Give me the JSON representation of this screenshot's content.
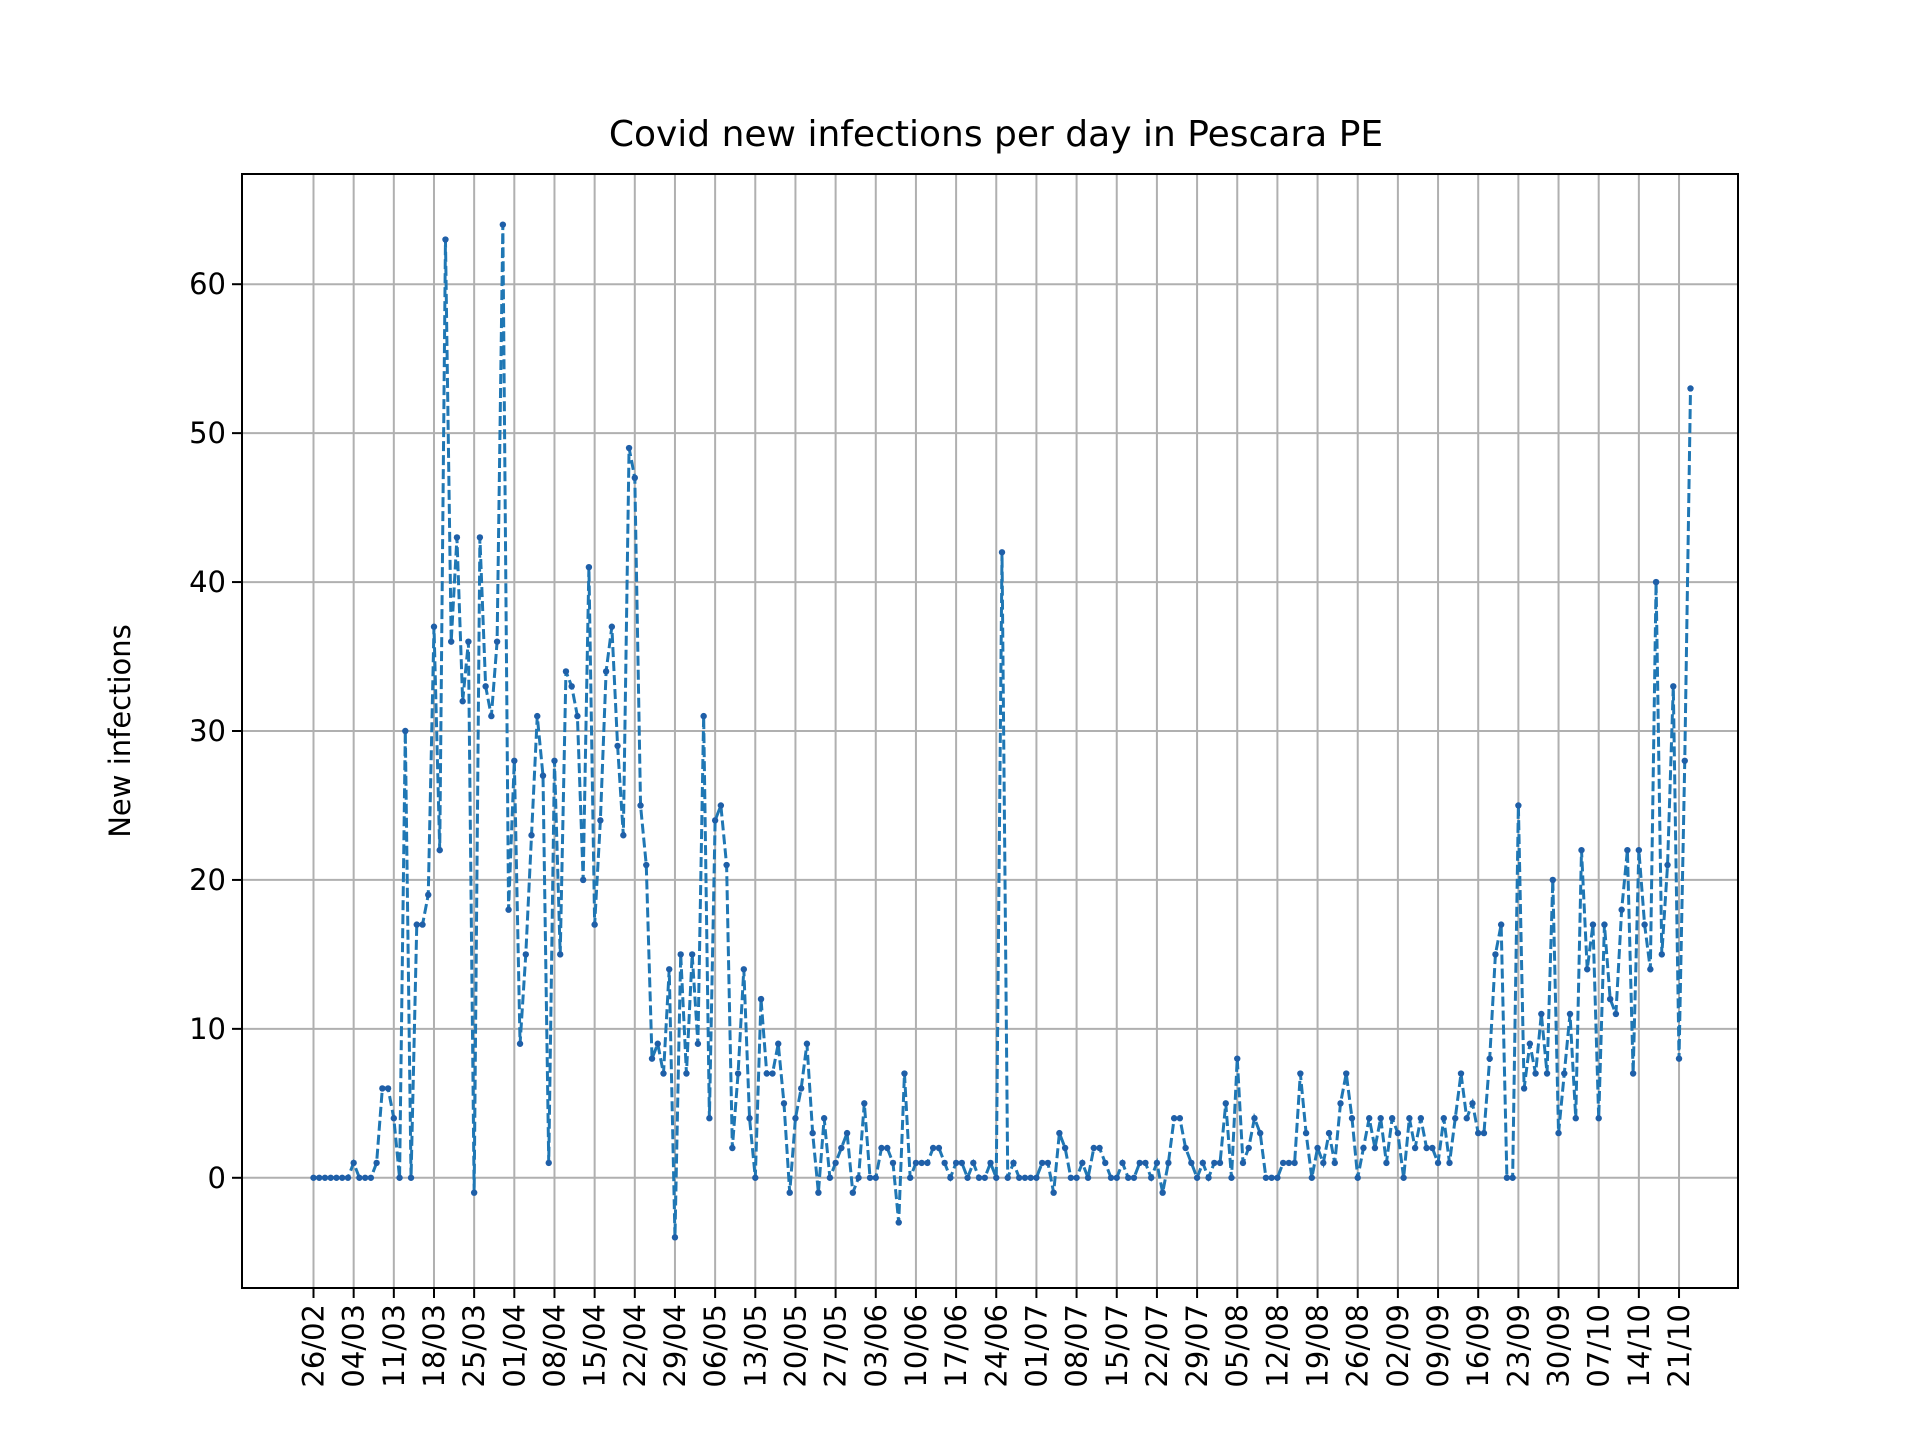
{
  "chart_data": {
    "type": "line",
    "title": "Covid new infections per day in Pescara PE",
    "xlabel": "",
    "ylabel": "New infections",
    "x_tick_labels": [
      "26/02",
      "04/03",
      "11/03",
      "18/03",
      "25/03",
      "01/04",
      "08/04",
      "15/04",
      "22/04",
      "29/04",
      "06/05",
      "13/05",
      "20/05",
      "27/05",
      "03/06",
      "10/06",
      "17/06",
      "24/06",
      "01/07",
      "08/07",
      "15/07",
      "22/07",
      "29/07",
      "05/08",
      "12/08",
      "19/08",
      "26/08",
      "02/09",
      "09/09",
      "16/09",
      "23/09",
      "30/09",
      "07/10",
      "14/10",
      "21/10"
    ],
    "x_first_date": "26/02",
    "y_ticks": [
      0,
      10,
      20,
      30,
      40,
      50,
      60
    ],
    "ylim": [
      -7.4,
      67.4
    ],
    "grid": true,
    "line_style": "dashed",
    "marker": "dot",
    "color": "#1f77b4",
    "series": [
      {
        "values": [
          0,
          0,
          0,
          0,
          0,
          0,
          0,
          1,
          0,
          0,
          0,
          1,
          6,
          6,
          4,
          0,
          30,
          0,
          17,
          17,
          19,
          37,
          22,
          63,
          36,
          43,
          32,
          36,
          -1,
          43,
          33,
          31,
          36,
          64,
          18,
          28,
          9,
          15,
          23,
          31,
          27,
          1,
          28,
          15,
          34,
          33,
          31,
          20,
          41,
          17,
          24,
          34,
          37,
          29,
          23,
          49,
          47,
          25,
          21,
          8,
          9,
          7,
          14,
          -4,
          15,
          7,
          15,
          9,
          31,
          4,
          24,
          25,
          21,
          2,
          7,
          14,
          4,
          0,
          12,
          7,
          7,
          9,
          5,
          -1,
          4,
          6,
          9,
          3,
          -1,
          4,
          0,
          1,
          2,
          3,
          -1,
          0,
          5,
          0,
          0,
          2,
          2,
          1,
          -3,
          7,
          0,
          1,
          1,
          1,
          2,
          2,
          1,
          0,
          1,
          1,
          0,
          1,
          0,
          0,
          1,
          0,
          42,
          0,
          1,
          0,
          0,
          0,
          0,
          1,
          1,
          -1,
          3,
          2,
          0,
          0,
          1,
          0,
          2,
          2,
          1,
          0,
          0,
          1,
          0,
          0,
          1,
          1,
          0,
          1,
          -1,
          1,
          4,
          4,
          2,
          1,
          0,
          1,
          0,
          1,
          1,
          5,
          0,
          8,
          1,
          2,
          4,
          3,
          0,
          0,
          0,
          1,
          1,
          1,
          7,
          3,
          0,
          2,
          1,
          3,
          1,
          5,
          7,
          4,
          0,
          2,
          4,
          2,
          4,
          1,
          4,
          3,
          0,
          4,
          2,
          4,
          2,
          2,
          1,
          4,
          1,
          4,
          7,
          4,
          5,
          3,
          3,
          8,
          15,
          17,
          0,
          0,
          25,
          6,
          9,
          7,
          11,
          7,
          20,
          3,
          7,
          11,
          4,
          22,
          14,
          17,
          4,
          17,
          12,
          11,
          18,
          22,
          7,
          22,
          17,
          14,
          40,
          15,
          21,
          33,
          8,
          28,
          53
        ]
      }
    ]
  }
}
